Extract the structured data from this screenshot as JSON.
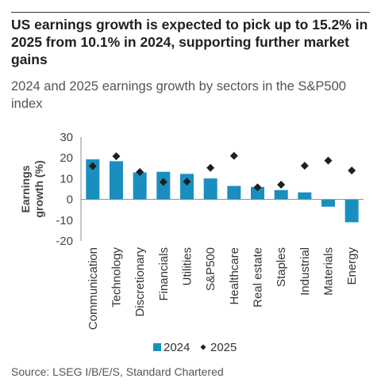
{
  "header": {
    "title": "US earnings growth is expected to pick up to 15.2% in 2025 from 10.1% in 2024, supporting further market gains",
    "subtitle": "2024 and 2025 earnings growth by sectors in the S&P500 index"
  },
  "source": "Source: LSEG I/B/E/S, Standard Chartered",
  "colors": {
    "bar_2024": "#1a8fbf",
    "marker_2025": "#1f1f1f",
    "axis_text": "#444444",
    "gridline": "#bfbfbf"
  },
  "chart_data": {
    "type": "bar",
    "categories": [
      "Communication",
      "Technology",
      "Discretionary",
      "Financials",
      "Utilities",
      "S&P500",
      "Healthcare",
      "Real estate",
      "Staples",
      "Industrial",
      "Materials",
      "Energy"
    ],
    "series": [
      {
        "name": "2024",
        "kind": "bar",
        "values": [
          19.3,
          18.4,
          13.0,
          13.3,
          12.3,
          10.1,
          6.5,
          6.0,
          4.5,
          3.4,
          -3.5,
          -11.0
        ]
      },
      {
        "name": "2025",
        "kind": "marker",
        "marker": "diamond",
        "values": [
          16.0,
          20.8,
          13.2,
          8.4,
          8.6,
          15.2,
          21.0,
          5.8,
          7.1,
          16.2,
          18.7,
          13.9
        ]
      }
    ],
    "ylabel": "Earnings growth (%)",
    "yticks": [
      30,
      20,
      10,
      0,
      -10,
      -20
    ],
    "ylim": [
      -20,
      30
    ],
    "grid": false,
    "legend_position": "bottom"
  }
}
